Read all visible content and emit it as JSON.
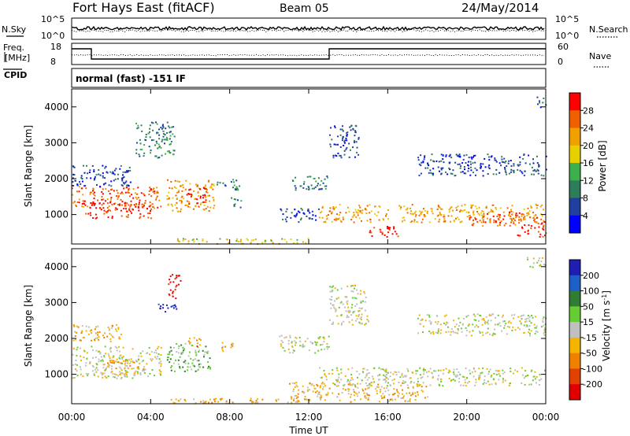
{
  "header": {
    "radar": "Fort Hays East (fitACF)",
    "beam": "Beam 05",
    "date": "24/May/2014"
  },
  "nsky_panel": {
    "left_label": "N.Sky",
    "left_ticks": [
      "10^5",
      "10^0"
    ],
    "right_ticks": [
      "10^5",
      "10^0"
    ],
    "right_label": "N.Search"
  },
  "freq_panel": {
    "left_label_line1": "Freq.",
    "left_label_line2": "[MHz]",
    "left_ticks": [
      "18",
      "8"
    ],
    "right_ticks": [
      "60",
      "0"
    ],
    "right_label": "Nave",
    "cpid_label": "CPID",
    "cpid_text": "normal (fast) -151 IF"
  },
  "colors": {
    "power": [
      "#0000ff",
      "#2040a0",
      "#2e7d5a",
      "#3cb04c",
      "#e8d000",
      "#f0a000",
      "#f06000",
      "#ff0000"
    ],
    "velocity": [
      "#1e1eb4",
      "#1e5fc8",
      "#2e7d32",
      "#66cc33",
      "#c0c0c0",
      "#f4b400",
      "#f08000",
      "#e04000",
      "#e00000"
    ]
  },
  "chart_data": [
    {
      "type": "heatmap",
      "name": "power",
      "xlabel": "",
      "ylabel": "Slant Range [km]",
      "xlim": [
        0,
        24
      ],
      "ylim": [
        180,
        4500
      ],
      "yticks": [
        "1000",
        "2000",
        "3000",
        "4000"
      ],
      "xticks": [
        "00:00",
        "04:00",
        "08:00",
        "12:00",
        "16:00",
        "20:00",
        "00:00"
      ],
      "colorbar_label": "Power [dB]",
      "colorbar_ticks": [
        "4",
        "8",
        "12",
        "16",
        "20",
        "24",
        "28"
      ],
      "scatter_regions": [
        {
          "t": [
            0.0,
            4.5
          ],
          "r": [
            1200,
            1800
          ],
          "level": 6
        },
        {
          "t": [
            0.5,
            4.0
          ],
          "r": [
            900,
            1400
          ],
          "level": 7
        },
        {
          "t": [
            0.0,
            3.0
          ],
          "r": [
            1800,
            2400
          ],
          "level": 1
        },
        {
          "t": [
            3.2,
            5.2
          ],
          "r": [
            2600,
            3600
          ],
          "level": 2
        },
        {
          "t": [
            4.8,
            7.2
          ],
          "r": [
            1100,
            2000
          ],
          "level": 5
        },
        {
          "t": [
            5.8,
            6.8
          ],
          "r": [
            1300,
            1800
          ],
          "level": 7
        },
        {
          "t": [
            7.2,
            8.5
          ],
          "r": [
            1700,
            2000
          ],
          "level": 2
        },
        {
          "t": [
            8.0,
            8.6
          ],
          "r": [
            1200,
            1500
          ],
          "level": 2
        },
        {
          "t": [
            10.5,
            12.5
          ],
          "r": [
            800,
            1200
          ],
          "level": 1
        },
        {
          "t": [
            11.0,
            13.0
          ],
          "r": [
            1700,
            2100
          ],
          "level": 2
        },
        {
          "t": [
            12.5,
            16.0
          ],
          "r": [
            800,
            1300
          ],
          "level": 5
        },
        {
          "t": [
            15.0,
            16.5
          ],
          "r": [
            380,
            700
          ],
          "level": 7
        },
        {
          "t": [
            16.5,
            24.0
          ],
          "r": [
            800,
            1300
          ],
          "level": 5
        },
        {
          "t": [
            20.0,
            24.0
          ],
          "r": [
            700,
            1100
          ],
          "level": 6
        },
        {
          "t": [
            22.5,
            24.0
          ],
          "r": [
            400,
            700
          ],
          "level": 7
        },
        {
          "t": [
            13.0,
            14.5
          ],
          "r": [
            2600,
            3500
          ],
          "level": 1
        },
        {
          "t": [
            17.5,
            24.0
          ],
          "r": [
            2100,
            2700
          ],
          "level": 1
        },
        {
          "t": [
            23.5,
            24.0
          ],
          "r": [
            4000,
            4300
          ],
          "level": 1
        },
        {
          "t": [
            5.0,
            12.0
          ],
          "r": [
            200,
            350
          ],
          "level": 4
        }
      ]
    },
    {
      "type": "heatmap",
      "name": "velocity",
      "xlabel": "Time UT",
      "ylabel": "Slant Range [km]",
      "xlim": [
        0,
        24
      ],
      "ylim": [
        180,
        4500
      ],
      "yticks": [
        "1000",
        "2000",
        "3000",
        "4000"
      ],
      "xticks": [
        "00:00",
        "04:00",
        "08:00",
        "12:00",
        "16:00",
        "20:00",
        "00:00"
      ],
      "colorbar_label": "Velocity [m s",
      "colorbar_label_sup": "-1",
      "colorbar_label_end": "]",
      "colorbar_ticks": [
        "200",
        "100",
        "50",
        "15",
        "-15",
        "-50",
        "-100",
        "-200"
      ],
      "scatter_regions": [
        {
          "t": [
            0.0,
            4.5
          ],
          "r": [
            900,
            1800
          ],
          "level": 4
        },
        {
          "t": [
            1.5,
            3.8
          ],
          "r": [
            1000,
            1400
          ],
          "level": 5
        },
        {
          "t": [
            0.0,
            2.5
          ],
          "r": [
            1900,
            2400
          ],
          "level": 5
        },
        {
          "t": [
            4.3,
            5.3
          ],
          "r": [
            2700,
            3000
          ],
          "level": 0
        },
        {
          "t": [
            4.8,
            5.5
          ],
          "r": [
            3100,
            3800
          ],
          "level": 8
        },
        {
          "t": [
            4.8,
            7.0
          ],
          "r": [
            1100,
            1900
          ],
          "level": 3
        },
        {
          "t": [
            5.8,
            6.5
          ],
          "r": [
            1800,
            2100
          ],
          "level": 6
        },
        {
          "t": [
            7.5,
            8.3
          ],
          "r": [
            1600,
            1900
          ],
          "level": 5
        },
        {
          "t": [
            5.0,
            12.0
          ],
          "r": [
            200,
            350
          ],
          "level": 5
        },
        {
          "t": [
            12.5,
            24.0
          ],
          "r": [
            700,
            1200
          ],
          "level": 4
        },
        {
          "t": [
            10.5,
            13.0
          ],
          "r": [
            1600,
            2100
          ],
          "level": 4
        },
        {
          "t": [
            13.0,
            15.0
          ],
          "r": [
            2400,
            3500
          ],
          "level": 4
        },
        {
          "t": [
            17.5,
            24.0
          ],
          "r": [
            2100,
            2700
          ],
          "level": 4
        },
        {
          "t": [
            11.0,
            18.0
          ],
          "r": [
            250,
            800
          ],
          "level": 5
        },
        {
          "t": [
            23.0,
            24.0
          ],
          "r": [
            4000,
            4300
          ],
          "level": 4
        }
      ]
    }
  ]
}
